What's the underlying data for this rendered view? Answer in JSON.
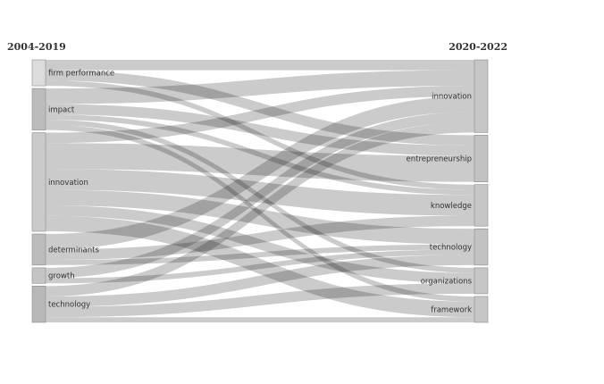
{
  "left_period": "2004-2019",
  "right_period": "2020-2022",
  "colors": {
    "flow": "#bdbdbd",
    "node_stroke": "#8a8a8a",
    "label": "#333333"
  },
  "left_nodes": [
    {
      "id": "firm-performance",
      "label": "firm performance",
      "fill": "#dcdcdc"
    },
    {
      "id": "impact",
      "label": "impact",
      "fill": "#bcbcbc"
    },
    {
      "id": "innovation",
      "label": "innovation",
      "fill": "#cacaca"
    },
    {
      "id": "determinants",
      "label": "determinants",
      "fill": "#bcbcbc"
    },
    {
      "id": "growth",
      "label": "growth",
      "fill": "#c4c4c4"
    },
    {
      "id": "technology",
      "label": "technology",
      "fill": "#b8b8b8"
    }
  ],
  "right_nodes": [
    {
      "id": "innovation",
      "label": "innovation",
      "fill": "#c6c6c6"
    },
    {
      "id": "entrepreneurship",
      "label": "entrepreneurship",
      "fill": "#c2c2c2"
    },
    {
      "id": "knowledge",
      "label": "knowledge",
      "fill": "#c6c6c6"
    },
    {
      "id": "technology",
      "label": "technology",
      "fill": "#c2c2c2"
    },
    {
      "id": "organizations",
      "label": "organizations",
      "fill": "#c6c6c6"
    },
    {
      "id": "framework",
      "label": "framework",
      "fill": "#c6c6c6"
    }
  ],
  "flows": [
    {
      "source": "firm-performance",
      "target": "innovation",
      "value": 2
    },
    {
      "source": "firm-performance",
      "target": "entrepreneurship",
      "value": 2
    },
    {
      "source": "firm-performance",
      "target": "knowledge",
      "value": 1
    },
    {
      "source": "impact",
      "target": "innovation",
      "value": 3
    },
    {
      "source": "impact",
      "target": "entrepreneurship",
      "value": 2
    },
    {
      "source": "impact",
      "target": "knowledge",
      "value": 1
    },
    {
      "source": "impact",
      "target": "organizations",
      "value": 1
    },
    {
      "source": "impact",
      "target": "framework",
      "value": 1
    },
    {
      "source": "innovation",
      "target": "innovation",
      "value": 2
    },
    {
      "source": "innovation",
      "target": "entrepreneurship",
      "value": 5
    },
    {
      "source": "innovation",
      "target": "knowledge",
      "value": 4
    },
    {
      "source": "innovation",
      "target": "technology",
      "value": 3
    },
    {
      "source": "innovation",
      "target": "organizations",
      "value": 2
    },
    {
      "source": "innovation",
      "target": "framework",
      "value": 3
    },
    {
      "source": "determinants",
      "target": "innovation",
      "value": 3
    },
    {
      "source": "determinants",
      "target": "knowledge",
      "value": 2
    },
    {
      "source": "determinants",
      "target": "technology",
      "value": 1
    },
    {
      "source": "growth",
      "target": "innovation",
      "value": 2
    },
    {
      "source": "growth",
      "target": "technology",
      "value": 1
    },
    {
      "source": "technology",
      "target": "innovation",
      "value": 2
    },
    {
      "source": "technology",
      "target": "technology",
      "value": 2
    },
    {
      "source": "technology",
      "target": "organizations",
      "value": 2
    },
    {
      "source": "technology",
      "target": "framework",
      "value": 1
    }
  ]
}
